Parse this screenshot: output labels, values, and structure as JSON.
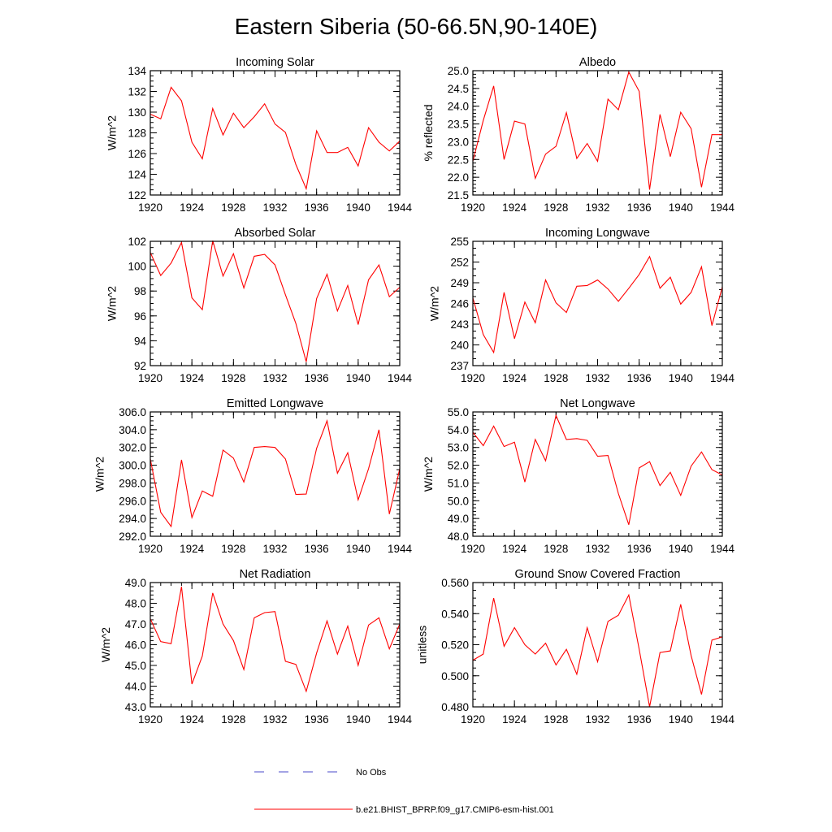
{
  "title": "Eastern Siberia (50-66.5N,90-140E)",
  "colors": {
    "model": "#ff0000",
    "obs": "#4a4ac8",
    "axis": "#000000"
  },
  "legend": [
    {
      "label": "No Obs",
      "style": "dashed",
      "color": "#4a4ac8"
    },
    {
      "label": "b.e21.BHIST_BPRP.f09_g17.CMIP6-esm-hist.001",
      "style": "solid",
      "color": "#ff0000"
    }
  ],
  "chart_data": [
    {
      "type": "line",
      "title": "Incoming Solar",
      "ylabel": "W/m^2",
      "xlim": [
        1920,
        1944
      ],
      "ylim": [
        122,
        134
      ],
      "xticks": [
        1920,
        1924,
        1928,
        1932,
        1936,
        1940,
        1944
      ],
      "xminor": 1,
      "yticks": [
        122,
        124,
        126,
        128,
        130,
        132,
        134
      ],
      "ydecimals": 0,
      "yminor": 0.5,
      "x": [
        1920,
        1921,
        1922,
        1923,
        1924,
        1925,
        1926,
        1927,
        1928,
        1929,
        1930,
        1931,
        1932,
        1933,
        1934,
        1935,
        1936,
        1937,
        1938,
        1939,
        1940,
        1941,
        1942,
        1943,
        1944
      ],
      "series": [
        {
          "name": "b.e21.BHIST_BPRP.f09_g17.CMIP6-esm-hist.001",
          "values": [
            129.8,
            129.35,
            132.4,
            131.1,
            127.1,
            125.5,
            130.35,
            127.8,
            129.9,
            128.5,
            129.55,
            130.8,
            128.85,
            128.05,
            124.95,
            122.6,
            128.2,
            126.1,
            126.1,
            126.6,
            124.8,
            128.5,
            127.1,
            126.25,
            127.2
          ]
        }
      ]
    },
    {
      "type": "line",
      "title": "Albedo",
      "ylabel": "% reflected",
      "xlim": [
        1920,
        1944
      ],
      "ylim": [
        21.5,
        25.0
      ],
      "xticks": [
        1920,
        1924,
        1928,
        1932,
        1936,
        1940,
        1944
      ],
      "xminor": 1,
      "yticks": [
        21.5,
        22.0,
        22.5,
        23.0,
        23.5,
        24.0,
        24.5,
        25.0
      ],
      "ydecimals": 1,
      "yminor": 0.1,
      "x": [
        1920,
        1921,
        1922,
        1923,
        1924,
        1925,
        1926,
        1927,
        1928,
        1929,
        1930,
        1931,
        1932,
        1933,
        1934,
        1935,
        1936,
        1937,
        1938,
        1939,
        1940,
        1941,
        1942,
        1943,
        1944
      ],
      "series": [
        {
          "name": "b.e21.BHIST_BPRP.f09_g17.CMIP6-esm-hist.001",
          "values": [
            22.45,
            23.6,
            24.57,
            22.5,
            23.58,
            23.5,
            21.97,
            22.65,
            22.87,
            23.82,
            22.53,
            22.95,
            22.45,
            24.2,
            23.9,
            24.96,
            24.42,
            21.65,
            23.77,
            22.58,
            23.83,
            23.37,
            21.72,
            23.2,
            23.2
          ]
        }
      ]
    },
    {
      "type": "line",
      "title": "Absorbed Solar",
      "ylabel": "W/m^2",
      "xlim": [
        1920,
        1944
      ],
      "ylim": [
        92,
        102
      ],
      "xticks": [
        1920,
        1924,
        1928,
        1932,
        1936,
        1940,
        1944
      ],
      "xminor": 1,
      "yticks": [
        92,
        94,
        96,
        98,
        100,
        102
      ],
      "ydecimals": 0,
      "yminor": 0.5,
      "x": [
        1920,
        1921,
        1922,
        1923,
        1924,
        1925,
        1926,
        1927,
        1928,
        1929,
        1930,
        1931,
        1932,
        1933,
        1934,
        1935,
        1936,
        1937,
        1938,
        1939,
        1940,
        1941,
        1942,
        1943,
        1944
      ],
      "series": [
        {
          "name": "b.e21.BHIST_BPRP.f09_g17.CMIP6-esm-hist.001",
          "values": [
            101.1,
            99.25,
            100.25,
            101.9,
            97.45,
            96.5,
            102.05,
            99.2,
            101.0,
            98.25,
            100.8,
            100.95,
            100.1,
            97.7,
            95.4,
            92.3,
            97.4,
            99.35,
            96.4,
            98.45,
            95.3,
            98.9,
            100.1,
            97.55,
            98.3
          ]
        }
      ]
    },
    {
      "type": "line",
      "title": "Incoming Longwave",
      "ylabel": "W/m^2",
      "xlim": [
        1920,
        1944
      ],
      "ylim": [
        237,
        255
      ],
      "xticks": [
        1920,
        1924,
        1928,
        1932,
        1936,
        1940,
        1944
      ],
      "xminor": 1,
      "yticks": [
        237,
        240,
        243,
        246,
        249,
        252,
        255
      ],
      "ydecimals": 0,
      "yminor": 1,
      "x": [
        1920,
        1921,
        1922,
        1923,
        1924,
        1925,
        1926,
        1927,
        1928,
        1929,
        1930,
        1931,
        1932,
        1933,
        1934,
        1935,
        1936,
        1937,
        1938,
        1939,
        1940,
        1941,
        1942,
        1943,
        1944
      ],
      "series": [
        {
          "name": "b.e21.BHIST_BPRP.f09_g17.CMIP6-esm-hist.001",
          "values": [
            246.8,
            241.5,
            238.9,
            247.6,
            240.9,
            246.2,
            243.2,
            249.4,
            246.1,
            244.7,
            248.5,
            248.6,
            249.4,
            248.1,
            246.3,
            248.2,
            250.2,
            252.8,
            248.2,
            249.8,
            245.9,
            247.6,
            251.3,
            242.8,
            248.4
          ]
        }
      ]
    },
    {
      "type": "line",
      "title": "Emitted Longwave",
      "ylabel": "W/m^2",
      "xlim": [
        1920,
        1944
      ],
      "ylim": [
        292.0,
        306.0
      ],
      "xticks": [
        1920,
        1924,
        1928,
        1932,
        1936,
        1940,
        1944
      ],
      "xminor": 1,
      "yticks": [
        292.0,
        294.0,
        296.0,
        298.0,
        300.0,
        302.0,
        304.0,
        306.0
      ],
      "ydecimals": 1,
      "yminor": 0.5,
      "x": [
        1920,
        1921,
        1922,
        1923,
        1924,
        1925,
        1926,
        1927,
        1928,
        1929,
        1930,
        1931,
        1932,
        1933,
        1934,
        1935,
        1936,
        1937,
        1938,
        1939,
        1940,
        1941,
        1942,
        1943,
        1944
      ],
      "series": [
        {
          "name": "b.e21.BHIST_BPRP.f09_g17.CMIP6-esm-hist.001",
          "values": [
            300.7,
            294.7,
            293.1,
            300.6,
            294.1,
            297.1,
            296.5,
            301.7,
            300.8,
            298.1,
            302.0,
            302.1,
            302.0,
            300.7,
            296.7,
            296.75,
            301.9,
            305.0,
            299.1,
            301.4,
            296.1,
            299.6,
            304.0,
            294.5,
            299.6
          ]
        }
      ]
    },
    {
      "type": "line",
      "title": "Net Longwave",
      "ylabel": "W/m^2",
      "xlim": [
        1920,
        1944
      ],
      "ylim": [
        48.0,
        55.0
      ],
      "xticks": [
        1920,
        1924,
        1928,
        1932,
        1936,
        1940,
        1944
      ],
      "xminor": 1,
      "yticks": [
        48.0,
        49.0,
        50.0,
        51.0,
        52.0,
        53.0,
        54.0,
        55.0
      ],
      "ydecimals": 1,
      "yminor": 0.2,
      "x": [
        1920,
        1921,
        1922,
        1923,
        1924,
        1925,
        1926,
        1927,
        1928,
        1929,
        1930,
        1931,
        1932,
        1933,
        1934,
        1935,
        1936,
        1937,
        1938,
        1939,
        1940,
        1941,
        1942,
        1943,
        1944
      ],
      "series": [
        {
          "name": "b.e21.BHIST_BPRP.f09_g17.CMIP6-esm-hist.001",
          "values": [
            53.85,
            53.1,
            54.2,
            53.05,
            53.3,
            51.05,
            53.45,
            52.25,
            54.8,
            53.45,
            53.5,
            53.4,
            52.5,
            52.55,
            50.4,
            48.65,
            51.85,
            52.2,
            50.85,
            51.6,
            50.3,
            51.95,
            52.75,
            51.75,
            51.45
          ]
        }
      ]
    },
    {
      "type": "line",
      "title": "Net Radiation",
      "ylabel": "W/m^2",
      "xlim": [
        1920,
        1944
      ],
      "ylim": [
        43.0,
        49.0
      ],
      "xticks": [
        1920,
        1924,
        1928,
        1932,
        1936,
        1940,
        1944
      ],
      "xminor": 1,
      "yticks": [
        43.0,
        44.0,
        45.0,
        46.0,
        47.0,
        48.0,
        49.0
      ],
      "ydecimals": 1,
      "yminor": 0.2,
      "x": [
        1920,
        1921,
        1922,
        1923,
        1924,
        1925,
        1926,
        1927,
        1928,
        1929,
        1930,
        1931,
        1932,
        1933,
        1934,
        1935,
        1936,
        1937,
        1938,
        1939,
        1940,
        1941,
        1942,
        1943,
        1944
      ],
      "series": [
        {
          "name": "b.e21.BHIST_BPRP.f09_g17.CMIP6-esm-hist.001",
          "values": [
            47.25,
            46.15,
            46.05,
            48.8,
            44.1,
            45.45,
            48.5,
            47.0,
            46.2,
            44.8,
            47.3,
            47.55,
            47.6,
            45.2,
            45.05,
            43.75,
            45.6,
            47.15,
            45.55,
            46.9,
            45.0,
            46.95,
            47.3,
            45.8,
            47.0
          ]
        }
      ]
    },
    {
      "type": "line",
      "title": "Ground Snow Covered Fraction",
      "ylabel": "unitless",
      "xlim": [
        1920,
        1944
      ],
      "ylim": [
        0.48,
        0.56
      ],
      "xticks": [
        1920,
        1924,
        1928,
        1932,
        1936,
        1940,
        1944
      ],
      "xminor": 1,
      "yticks": [
        0.48,
        0.5,
        0.52,
        0.54,
        0.56
      ],
      "ydecimals": 3,
      "yminor": 0.005,
      "x": [
        1920,
        1921,
        1922,
        1923,
        1924,
        1925,
        1926,
        1927,
        1928,
        1929,
        1930,
        1931,
        1932,
        1933,
        1934,
        1935,
        1936,
        1937,
        1938,
        1939,
        1940,
        1941,
        1942,
        1943,
        1944
      ],
      "series": [
        {
          "name": "b.e21.BHIST_BPRP.f09_g17.CMIP6-esm-hist.001",
          "values": [
            0.51,
            0.514,
            0.55,
            0.519,
            0.531,
            0.52,
            0.514,
            0.521,
            0.507,
            0.517,
            0.501,
            0.531,
            0.509,
            0.535,
            0.539,
            0.552,
            0.517,
            0.48,
            0.515,
            0.516,
            0.546,
            0.513,
            0.488,
            0.523,
            0.525
          ]
        }
      ]
    }
  ]
}
